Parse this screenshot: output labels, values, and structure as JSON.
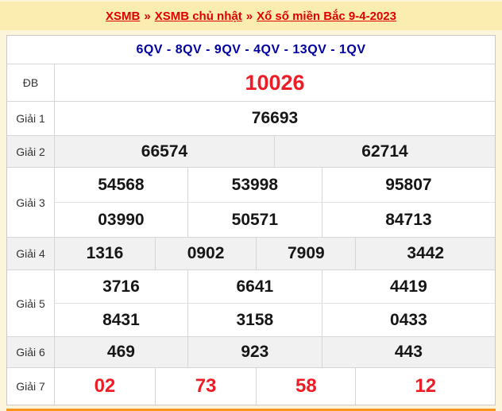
{
  "breadcrumb": {
    "separator": "»",
    "items": [
      {
        "label": "XSMB"
      },
      {
        "label": "XSMB chủ nhật"
      },
      {
        "label": "Xổ số miền Bắc 9-4-2023"
      }
    ]
  },
  "table": {
    "header_codes": "6QV - 8QV - 9QV - 4QV - 13QV - 1QV",
    "rows": [
      {
        "label": "ĐB",
        "style": "special",
        "striped": false,
        "numbers": [
          [
            "10026"
          ]
        ]
      },
      {
        "label": "Giải 1",
        "style": "",
        "striped": false,
        "numbers": [
          [
            "76693"
          ]
        ]
      },
      {
        "label": "Giải 2",
        "style": "",
        "striped": true,
        "numbers": [
          [
            "66574",
            "62714"
          ]
        ]
      },
      {
        "label": "Giải 3",
        "style": "",
        "striped": false,
        "numbers": [
          [
            "54568",
            "53998",
            "95807"
          ],
          [
            "03990",
            "50571",
            "84713"
          ]
        ]
      },
      {
        "label": "Giải 4",
        "style": "",
        "striped": true,
        "numbers": [
          [
            "1316",
            "0902",
            "7909",
            "3442"
          ]
        ]
      },
      {
        "label": "Giải 5",
        "style": "",
        "striped": false,
        "numbers": [
          [
            "3716",
            "6641",
            "4419"
          ],
          [
            "8431",
            "3158",
            "0433"
          ]
        ]
      },
      {
        "label": "Giải 6",
        "style": "",
        "striped": true,
        "numbers": [
          [
            "469",
            "923",
            "443"
          ]
        ]
      },
      {
        "label": "Giải 7",
        "style": "red",
        "striped": false,
        "numbers": [
          [
            "02",
            "73",
            "58",
            "12"
          ]
        ]
      }
    ]
  },
  "colors": {
    "page_bg": "#FCF5DB",
    "band_bg": "#FBEDAF",
    "bc_red": "#E00000",
    "navy": "#0000A0",
    "special_red": "#EE1C25",
    "num_black": "#161616",
    "stripe": "#F1F1F1",
    "border": "#D6D6D6",
    "orange": "#F7941D"
  }
}
